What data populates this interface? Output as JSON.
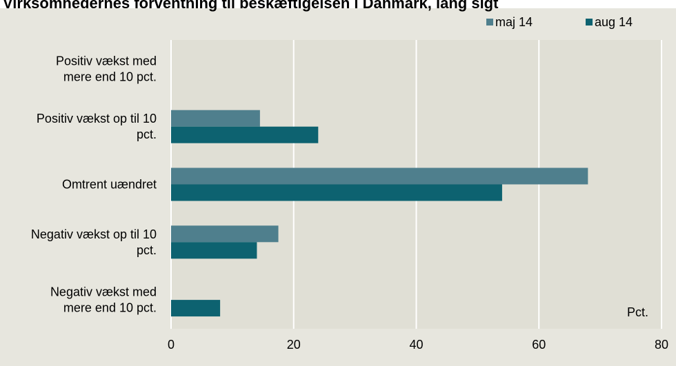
{
  "chart_data": {
    "type": "bar",
    "orientation": "horizontal",
    "title": "Virksomhedernes forventning til beskæftigelsen i Danmark, lang sigt",
    "unit_label": "Pct.",
    "categories": [
      [
        "Positiv vækst med",
        "mere end 10 pct."
      ],
      [
        "Positiv vækst op til 10",
        "pct."
      ],
      [
        "Omtrent uændret"
      ],
      [
        "Negativ vækst op til 10",
        "pct."
      ],
      [
        "Negativ vækst med",
        "mere end 10 pct."
      ]
    ],
    "series": [
      {
        "name": "maj 14",
        "color": "#4f7f8d",
        "values": [
          0,
          14.5,
          68,
          17.5,
          0
        ]
      },
      {
        "name": "aug 14",
        "color": "#0d6270",
        "values": [
          0,
          24,
          54,
          14,
          8
        ]
      }
    ],
    "xlim": [
      0,
      80
    ],
    "xticks": [
      0,
      20,
      40,
      60,
      80
    ],
    "grid": "vertical",
    "legend_position": "top-right",
    "plot_background": "#e0dfd5",
    "panel_background": "#e7e6de",
    "grid_color": "#ffffff"
  }
}
